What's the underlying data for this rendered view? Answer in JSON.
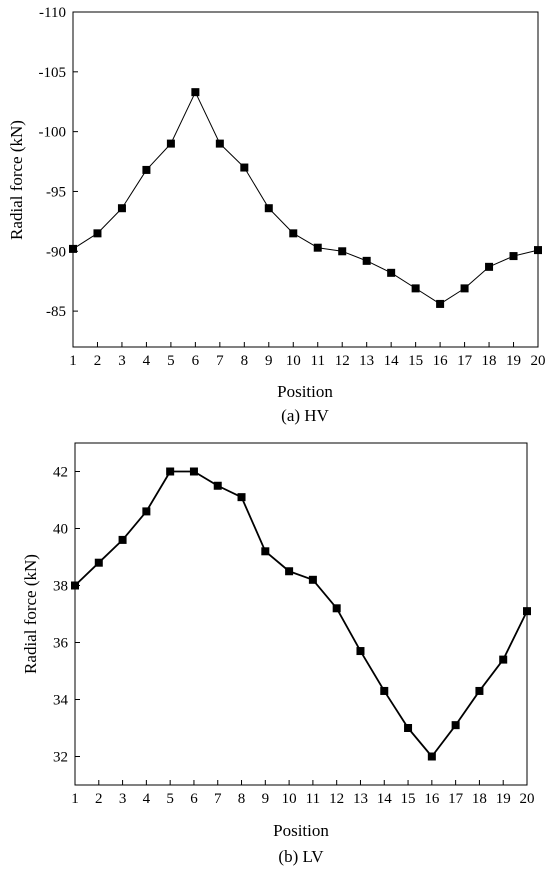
{
  "chart_data": [
    {
      "type": "line",
      "caption": "(a) HV",
      "xlabel": "Position",
      "ylabel": "Radial force (kN)",
      "xlim": [
        1,
        20
      ],
      "ylim": [
        -82,
        -110
      ],
      "y_ticks": [
        -110,
        -105,
        -100,
        -95,
        -90,
        -85
      ],
      "x_ticks": [
        1,
        2,
        3,
        4,
        5,
        6,
        7,
        8,
        9,
        10,
        11,
        12,
        13,
        14,
        15,
        16,
        17,
        18,
        19,
        20
      ],
      "grid": false,
      "marker": "square",
      "line_color": "#000000",
      "series": [
        {
          "x": [
            1,
            2,
            3,
            4,
            5,
            6,
            7,
            8,
            9,
            10,
            11,
            12,
            13,
            14,
            15,
            16,
            17,
            18,
            19,
            20
          ],
          "values": [
            -90.2,
            -91.5,
            -93.6,
            -96.8,
            -99.0,
            -103.3,
            -99.0,
            -97.0,
            -93.6,
            -91.5,
            -90.3,
            -90.0,
            -89.2,
            -88.2,
            -86.9,
            -85.6,
            -86.9,
            -88.7,
            -89.6,
            -90.1
          ]
        }
      ]
    },
    {
      "type": "line",
      "caption": "(b) LV",
      "xlabel": "Position",
      "ylabel": "Radial force (kN)",
      "xlim": [
        1,
        20
      ],
      "ylim": [
        31,
        43
      ],
      "y_ticks": [
        32,
        34,
        36,
        38,
        40,
        42
      ],
      "x_ticks": [
        1,
        2,
        3,
        4,
        5,
        6,
        7,
        8,
        9,
        10,
        11,
        12,
        13,
        14,
        15,
        16,
        17,
        18,
        19,
        20
      ],
      "grid": false,
      "marker": "square",
      "line_color": "#000000",
      "series": [
        {
          "x": [
            1,
            2,
            3,
            4,
            5,
            6,
            7,
            8,
            9,
            10,
            11,
            12,
            13,
            14,
            15,
            16,
            17,
            18,
            19,
            20
          ],
          "values": [
            38.0,
            38.8,
            39.6,
            40.6,
            42.0,
            42.0,
            41.5,
            41.1,
            39.2,
            38.5,
            38.2,
            37.2,
            35.7,
            34.3,
            33.0,
            32.0,
            33.1,
            34.3,
            35.4,
            37.1
          ]
        }
      ]
    }
  ]
}
